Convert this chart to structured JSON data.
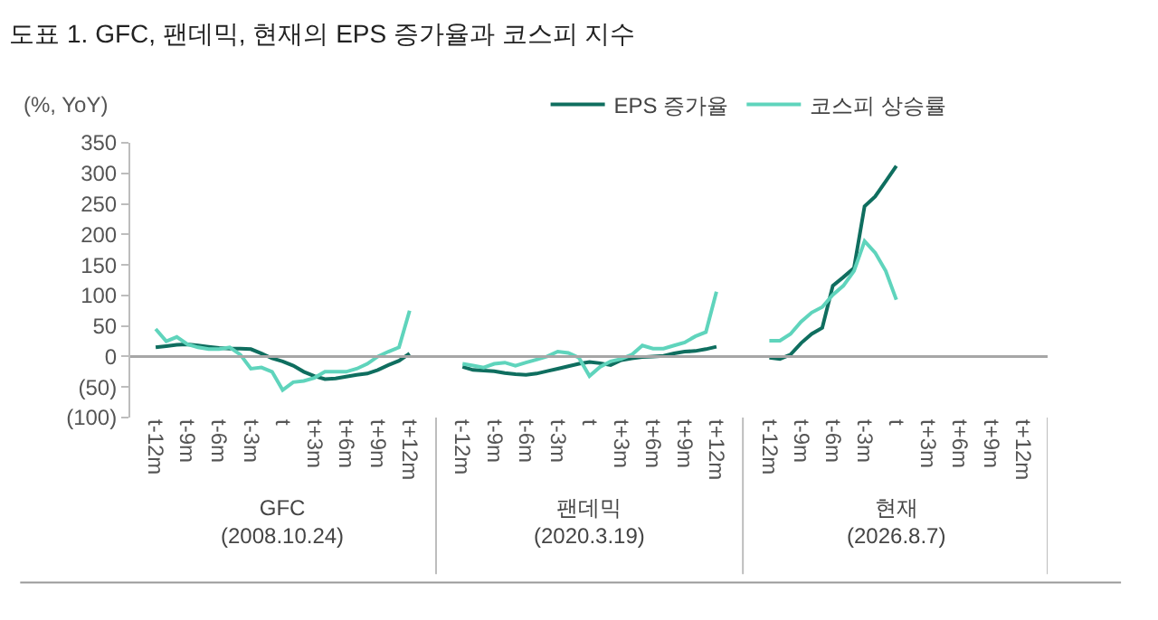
{
  "chart_data": {
    "type": "line",
    "title": "도표 1. GFC, 팬데믹, 현재의 EPS 증가율과 코스피 지수",
    "ylabel": "(%, YoY)",
    "categories": [
      "t-12m",
      null,
      null,
      "t-9m",
      null,
      null,
      "t-6m",
      null,
      null,
      "t-3m",
      null,
      null,
      "t",
      null,
      null,
      "t+3m",
      null,
      null,
      "t+6m",
      null,
      null,
      "t+9m",
      null,
      null,
      "t+12m",
      null,
      null,
      null,
      null,
      "t-12m",
      null,
      null,
      "t-9m",
      null,
      null,
      "t-6m",
      null,
      null,
      "t-3m",
      null,
      null,
      "t",
      null,
      null,
      "t+3m",
      null,
      null,
      "t+6m",
      null,
      null,
      "t+9m",
      null,
      null,
      "t+12m",
      null,
      null,
      null,
      null,
      "t-12m",
      null,
      null,
      "t-9m",
      null,
      null,
      "t-6m",
      null,
      null,
      "t-3m",
      null,
      null,
      "t",
      null,
      null,
      "t+3m",
      null,
      null,
      "t+6m",
      null,
      null,
      "t+9m",
      null,
      null,
      "t+12m"
    ],
    "series": [
      {
        "name": "EPS 증가율",
        "color": "#0f6e5f",
        "values": [
          15,
          17,
          19,
          20,
          18,
          16,
          14,
          13,
          13,
          12,
          5,
          -3,
          -8,
          -15,
          -25,
          -32,
          -37,
          -36,
          -33,
          -30,
          -28,
          -22,
          -14,
          -7,
          5,
          null,
          null,
          null,
          null,
          -17,
          -22,
          -23,
          -24,
          -27,
          -29,
          -30,
          -28,
          -24,
          -20,
          -16,
          -12,
          -9,
          -11,
          -14,
          -6,
          -3,
          -1,
          0,
          1,
          5,
          8,
          9,
          12,
          16,
          null,
          null,
          null,
          null,
          -2,
          -4,
          3,
          22,
          37,
          47,
          116,
          130,
          145,
          246,
          262,
          287,
          312,
          null,
          null,
          null,
          null,
          null,
          null,
          null,
          null,
          null,
          null,
          null,
          null
        ]
      },
      {
        "name": "코스피 상승률",
        "color": "#5fd4bc",
        "values": [
          45,
          25,
          32,
          20,
          15,
          12,
          12,
          15,
          3,
          -20,
          -18,
          -25,
          -55,
          -42,
          -40,
          -35,
          -25,
          -25,
          -25,
          -20,
          -12,
          0,
          8,
          15,
          75,
          null,
          null,
          null,
          null,
          -12,
          -15,
          -18,
          -12,
          -10,
          -15,
          -10,
          -5,
          0,
          8,
          6,
          -2,
          -32,
          -17,
          -8,
          -4,
          3,
          18,
          13,
          13,
          18,
          23,
          33,
          40,
          106,
          null,
          null,
          null,
          null,
          26,
          26,
          37,
          57,
          72,
          81,
          101,
          116,
          140,
          189,
          170,
          140,
          93,
          null,
          null,
          null,
          null,
          null,
          null,
          null,
          null,
          null,
          null,
          null,
          null
        ]
      }
    ],
    "ylim": [
      -100,
      350
    ],
    "yticks": [
      {
        "value": -100,
        "label": "(100)"
      },
      {
        "value": -50,
        "label": "(50)"
      },
      0,
      50,
      100,
      150,
      200,
      250,
      300,
      350
    ],
    "ref_lines": [
      {
        "axis": "y",
        "value": 0,
        "color": "#a6a6a6"
      }
    ],
    "annotations": [
      "GFC\n(2008.10.24)",
      "팬데믹\n(2020.3.19)",
      "현재\n(2026.8.7)"
    ],
    "grid": false,
    "legend": "top right",
    "marker": "none",
    "line_style": "solid"
  }
}
